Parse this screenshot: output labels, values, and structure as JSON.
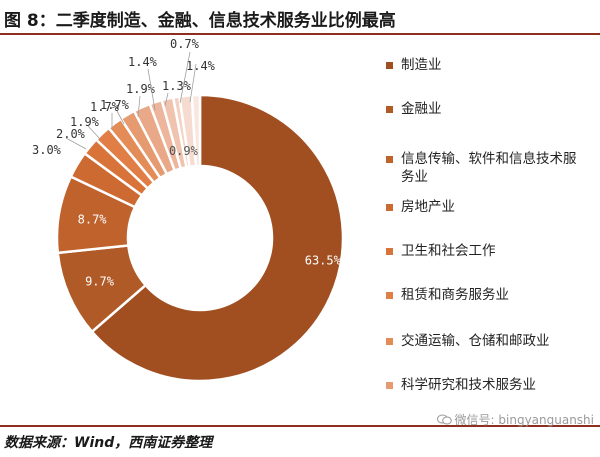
{
  "title": "图 8：二季度制造、金融、信息技术服务业比例最高",
  "source": "数据来源：Wind，西南证券整理",
  "watermark": "微信号: bingyanguanshi",
  "chart_data": {
    "type": "pie",
    "donut": true,
    "categories": [
      "制造业",
      "金融业",
      "信息传输、软件和信息技术服务业",
      "房地产业",
      "卫生和社会工作",
      "租赁和商务服务业",
      "交通运输、仓储和邮政业",
      "科学研究和技术服务业",
      "",
      "",
      "",
      "",
      "",
      ""
    ],
    "values": [
      63.5,
      9.7,
      8.7,
      3.0,
      2.0,
      1.9,
      1.7,
      1.7,
      1.9,
      1.4,
      1.3,
      0.7,
      1.4,
      0.9
    ],
    "data_labels": [
      "63.5%",
      "9.7%",
      "8.7%",
      "3.0%",
      "2.0%",
      "1.9%",
      "1.7%",
      "1.7%",
      "1.9%",
      "1.4%",
      "1.3%",
      "0.7%",
      "1.4%",
      "0.9%"
    ],
    "colors": [
      "#a14f21",
      "#b05a27",
      "#c0622c",
      "#cc6a32",
      "#d8743a",
      "#e07e45",
      "#e48c58",
      "#e69a70",
      "#e9a888",
      "#ecb59c",
      "#f0c3ae",
      "#f4d2c2",
      "#f6dcd0",
      "#f9e7df"
    ],
    "legend_position": "right"
  }
}
